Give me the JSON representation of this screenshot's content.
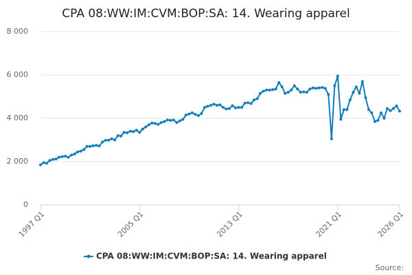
{
  "chart_data": {
    "type": "line",
    "title": "CPA 08:WW:IM:CVM:BOP:SA: 14. Wearing apparel",
    "source": "Source:",
    "categories": [
      "1997 Q1",
      null,
      null,
      null,
      null,
      null,
      null,
      null,
      null,
      null,
      null,
      null,
      null,
      null,
      null,
      null,
      null,
      null,
      null,
      null,
      null,
      null,
      null,
      null,
      null,
      null,
      null,
      null,
      null,
      null,
      null,
      null,
      "2005 Q1",
      null,
      null,
      null,
      null,
      null,
      null,
      null,
      null,
      null,
      null,
      null,
      null,
      null,
      null,
      null,
      null,
      null,
      null,
      null,
      null,
      null,
      null,
      null,
      null,
      null,
      null,
      null,
      null,
      null,
      null,
      null,
      "2013 Q1",
      null,
      null,
      null,
      null,
      null,
      null,
      null,
      null,
      null,
      null,
      null,
      null,
      null,
      null,
      null,
      null,
      null,
      null,
      null,
      null,
      null,
      null,
      null,
      null,
      null,
      null,
      null,
      null,
      null,
      null,
      null,
      "2021 Q1",
      null,
      null,
      null,
      null,
      null,
      null,
      null,
      null,
      null,
      null,
      null,
      null,
      null,
      null,
      null,
      null,
      null,
      null,
      null,
      "2026 Q1"
    ],
    "series": [
      {
        "name": "CPA 08:WW:IM:CVM:BOP:SA: 14. Wearing apparel",
        "color": "#0f7dbb",
        "values": [
          1850,
          1950,
          1920,
          2050,
          2100,
          2120,
          2200,
          2230,
          2250,
          2200,
          2300,
          2350,
          2450,
          2480,
          2550,
          2700,
          2700,
          2730,
          2750,
          2720,
          2900,
          2980,
          2990,
          3050,
          3000,
          3200,
          3180,
          3350,
          3330,
          3400,
          3380,
          3450,
          3350,
          3500,
          3600,
          3700,
          3780,
          3760,
          3720,
          3800,
          3850,
          3920,
          3900,
          3920,
          3800,
          3880,
          3950,
          4150,
          4200,
          4250,
          4180,
          4120,
          4220,
          4500,
          4550,
          4600,
          4650,
          4600,
          4620,
          4500,
          4430,
          4450,
          4580,
          4480,
          4500,
          4500,
          4700,
          4720,
          4680,
          4850,
          4900,
          5150,
          5250,
          5300,
          5300,
          5320,
          5350,
          5650,
          5450,
          5150,
          5200,
          5300,
          5500,
          5350,
          5200,
          5220,
          5200,
          5350,
          5400,
          5380,
          5400,
          5420,
          5380,
          5100,
          3050,
          5500,
          5950,
          3950,
          4400,
          4400,
          4850,
          5200,
          5450,
          5150,
          5700,
          4950,
          4400,
          4250,
          3850,
          3900,
          4250,
          4000,
          4450,
          4350,
          4450,
          4570,
          4330
        ]
      }
    ],
    "ylim": [
      0,
      8000
    ],
    "yticks": [
      0,
      {
        "value": 2000,
        "label": "2 000"
      },
      {
        "value": 4000,
        "label": "4 000"
      },
      {
        "value": 6000,
        "label": "6 000"
      },
      {
        "value": 8000,
        "label": "8 000"
      }
    ],
    "grid": true,
    "legend": "bottom"
  }
}
